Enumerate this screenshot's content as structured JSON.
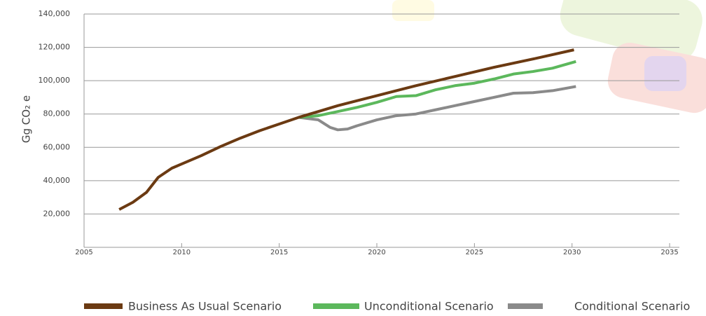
{
  "chart_data": {
    "type": "line",
    "y_label": "Gg CO₂ e",
    "xlim": [
      2005,
      2035.5
    ],
    "xticks": [
      2005,
      2010,
      2015,
      2020,
      2025,
      2030,
      2035
    ],
    "ylim": [
      0,
      140000
    ],
    "yticks": [
      {
        "value": 20000,
        "label": "20,000"
      },
      {
        "value": 40000,
        "label": "40,000"
      },
      {
        "value": 60000,
        "label": "60,000"
      },
      {
        "value": 80000,
        "label": "80,000"
      },
      {
        "value": 100000,
        "label": "100,000"
      },
      {
        "value": 120000,
        "label": "120,000"
      },
      {
        "value": 140000,
        "label": "140,000"
      }
    ],
    "grid": true,
    "series": [
      {
        "name": "Business As Usual Scenario",
        "color": "#6b3a12",
        "x": [
          2006.8,
          2007.5,
          2008.2,
          2008.8,
          2009.5,
          2010,
          2011,
          2012,
          2013,
          2014,
          2015,
          2016,
          2017,
          2018,
          2020,
          2022,
          2024,
          2026,
          2028,
          2030.1
        ],
        "values": [
          22700,
          27000,
          33000,
          42000,
          47500,
          50000,
          55000,
          60500,
          65500,
          70000,
          74000,
          78000,
          81500,
          85000,
          91000,
          97000,
          102500,
          108000,
          113000,
          118500
        ]
      },
      {
        "name": "Unconditional Scenario",
        "color": "#5cb85c",
        "x": [
          2016,
          2017,
          2018,
          2019,
          2020,
          2021,
          2022,
          2023,
          2024,
          2025,
          2026,
          2027,
          2028,
          2029,
          2030.2
        ],
        "values": [
          78000,
          79000,
          81500,
          84000,
          87000,
          90500,
          91000,
          94500,
          97000,
          98500,
          101000,
          104000,
          105500,
          107500,
          111500
        ]
      },
      {
        "name": "Conditional Scenario",
        "color": "#8a8a8a",
        "x": [
          2016,
          2017,
          2017.6,
          2018,
          2018.5,
          2019,
          2020,
          2021,
          2022,
          2023,
          2024,
          2025,
          2026,
          2027,
          2028,
          2029,
          2030.2
        ],
        "values": [
          78000,
          76500,
          72000,
          70500,
          71000,
          73000,
          76500,
          79000,
          80000,
          82500,
          85000,
          87500,
          90000,
          92500,
          92800,
          94000,
          96500
        ]
      }
    ]
  }
}
